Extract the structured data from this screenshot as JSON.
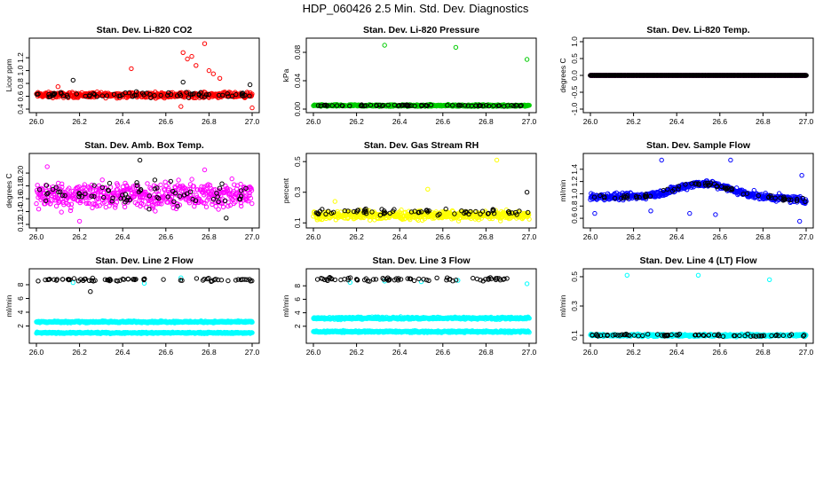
{
  "title": "HDP_060426  2.5 Min. Std. Dev. Diagnostics",
  "colors": {
    "red": "#ff0000",
    "green": "#00cc00",
    "magenta": "#ff00ff",
    "yellow": "#ffff00",
    "blue": "#0000ff",
    "cyan": "#00ffff",
    "black": "#000000"
  },
  "chart_data": [
    {
      "type": "scatter",
      "title": "Stan. Dev. Li-820 CO2",
      "ylabel": "Licor ppm",
      "xlim": [
        26.0,
        27.0
      ],
      "ylim": [
        0.4,
        1.45
      ],
      "xticks": [
        "26.0",
        "26.2",
        "26.4",
        "26.6",
        "26.8",
        "27.0"
      ],
      "yticks": [
        "0.4",
        "0.6",
        "0.8",
        "1.0",
        "1.2"
      ],
      "grid": false,
      "series": [
        {
          "color": "red",
          "kind": "band",
          "center": 0.62,
          "spread": 0.06,
          "outliers": [
            [
              26.44,
              1.03
            ],
            [
              26.68,
              1.28
            ],
            [
              26.7,
              1.18
            ],
            [
              26.72,
              1.22
            ],
            [
              26.74,
              1.08
            ],
            [
              26.78,
              1.42
            ],
            [
              26.8,
              1.0
            ],
            [
              26.82,
              0.95
            ],
            [
              26.85,
              0.88
            ],
            [
              26.67,
              0.44
            ],
            [
              27.0,
              0.42
            ],
            [
              26.1,
              0.75
            ]
          ]
        },
        {
          "color": "black",
          "kind": "sparse",
          "center": 0.62,
          "spread": 0.06,
          "outliers": [
            [
              26.17,
              0.85
            ],
            [
              26.68,
              0.82
            ],
            [
              26.99,
              0.78
            ]
          ]
        }
      ]
    },
    {
      "type": "scatter",
      "title": "Stan. Dev. Li-820 Pressure",
      "ylabel": "kPa",
      "xlim": [
        26.0,
        27.0
      ],
      "ylim": [
        0.0,
        0.095
      ],
      "xticks": [
        "26.0",
        "26.2",
        "26.4",
        "26.6",
        "26.8",
        "27.0"
      ],
      "yticks": [
        "0.00",
        "0.04",
        "0.08"
      ],
      "grid": false,
      "series": [
        {
          "color": "green",
          "kind": "band",
          "center": 0.005,
          "spread": 0.002,
          "outliers": [
            [
              26.33,
              0.09
            ],
            [
              26.66,
              0.087
            ],
            [
              26.99,
              0.07
            ]
          ]
        },
        {
          "color": "black",
          "kind": "sparse",
          "center": 0.005,
          "spread": 0.0015,
          "outliers": []
        }
      ]
    },
    {
      "type": "scatter",
      "title": "Stan. Dev. Li-820 Temp.",
      "ylabel": "degrees C",
      "xlim": [
        26.0,
        27.0
      ],
      "ylim": [
        -1.0,
        1.0
      ],
      "xticks": [
        "26.0",
        "26.2",
        "26.4",
        "26.6",
        "26.8",
        "27.0"
      ],
      "yticks": [
        "-1.0",
        "-0.5",
        "0.0",
        "0.5",
        "1.0"
      ],
      "grid": false,
      "series": [
        {
          "color": "magenta",
          "kind": "line",
          "center": 0.0,
          "spread": 0.0,
          "outliers": [
            [
              26.0,
              0.0
            ]
          ]
        },
        {
          "color": "black",
          "kind": "line",
          "center": 0.0,
          "spread": 0.0,
          "outliers": []
        }
      ]
    },
    {
      "type": "scatter",
      "title": "Stan. Dev. Amb. Box Temp.",
      "ylabel": "degrees C",
      "xlim": [
        26.0,
        27.0
      ],
      "ylim": [
        0.12,
        0.225
      ],
      "xticks": [
        "26.0",
        "26.2",
        "26.4",
        "26.6",
        "26.8",
        "27.0"
      ],
      "yticks": [
        "0.12",
        "0.14",
        "0.16",
        "0.18",
        "0.20"
      ],
      "grid": false,
      "series": [
        {
          "color": "magenta",
          "kind": "band",
          "center": 0.165,
          "spread": 0.03,
          "outliers": [
            [
              26.05,
              0.21
            ],
            [
              26.2,
              0.125
            ],
            [
              26.78,
              0.205
            ]
          ]
        },
        {
          "color": "black",
          "kind": "sparse",
          "center": 0.168,
          "spread": 0.028,
          "outliers": [
            [
              26.48,
              0.22
            ],
            [
              26.88,
              0.13
            ]
          ]
        }
      ]
    },
    {
      "type": "scatter",
      "title": "Stan. Dev. Gas Stream RH",
      "ylabel": "percent",
      "xlim": [
        26.0,
        27.0
      ],
      "ylim": [
        0.09,
        0.53
      ],
      "xticks": [
        "26.0",
        "26.2",
        "26.4",
        "26.6",
        "26.8",
        "27.0"
      ],
      "yticks": [
        "0.1",
        "0.3",
        "0.5"
      ],
      "grid": false,
      "series": [
        {
          "color": "yellow",
          "kind": "band",
          "center": 0.15,
          "spread": 0.04,
          "outliers": [
            [
              26.85,
              0.51
            ],
            [
              26.53,
              0.32
            ],
            [
              26.1,
              0.24
            ]
          ]
        },
        {
          "color": "black",
          "kind": "sparse",
          "center": 0.17,
          "spread": 0.03,
          "outliers": [
            [
              26.99,
              0.3
            ]
          ]
        }
      ]
    },
    {
      "type": "scatter",
      "title": "Stan. Dev. Sample Flow",
      "ylabel": "ml/min",
      "xlim": [
        26.0,
        27.0
      ],
      "ylim": [
        0.5,
        1.6
      ],
      "xticks": [
        "26.0",
        "26.2",
        "26.4",
        "26.6",
        "26.8",
        "27.0"
      ],
      "yticks": [
        "0.6",
        "0.8",
        "1.0",
        "1.2",
        "1.4"
      ],
      "grid": false,
      "series": [
        {
          "color": "blue",
          "kind": "hump",
          "center": 0.95,
          "spread": 0.08,
          "outliers": [
            [
              26.33,
              1.55
            ],
            [
              26.65,
              1.55
            ],
            [
              26.28,
              0.72
            ],
            [
              26.46,
              0.68
            ],
            [
              26.58,
              0.66
            ],
            [
              26.97,
              0.55
            ],
            [
              26.98,
              1.3
            ],
            [
              26.02,
              0.68
            ]
          ]
        },
        {
          "color": "black",
          "kind": "humpsparse",
          "center": 0.95,
          "spread": 0.05,
          "outliers": []
        }
      ]
    },
    {
      "type": "scatter",
      "title": "Stan. Dev. Line 2 Flow",
      "ylabel": "ml/min",
      "xlim": [
        26.0,
        27.0
      ],
      "ylim": [
        0.0,
        9.8
      ],
      "xticks": [
        "26.0",
        "26.2",
        "26.4",
        "26.6",
        "26.8",
        "27.0"
      ],
      "yticks": [
        "2",
        "4",
        "6",
        "8"
      ],
      "grid": false,
      "series": [
        {
          "color": "cyan",
          "kind": "band",
          "center": 2.6,
          "spread": 0.2,
          "outliers": [
            [
              26.17,
              8.3
            ],
            [
              26.5,
              8.2
            ],
            [
              26.67,
              9.0
            ]
          ]
        },
        {
          "color": "cyan",
          "kind": "band",
          "center": 1.0,
          "spread": 0.15,
          "outliers": []
        },
        {
          "color": "black",
          "kind": "sparse",
          "center": 8.7,
          "spread": 0.4,
          "outliers": [
            [
              26.25,
              7.0
            ]
          ]
        }
      ]
    },
    {
      "type": "scatter",
      "title": "Stan. Dev. Line 3 Flow",
      "ylabel": "ml/min",
      "xlim": [
        26.0,
        27.0
      ],
      "ylim": [
        0.0,
        10.0
      ],
      "xticks": [
        "26.0",
        "26.2",
        "26.4",
        "26.6",
        "26.8",
        "27.0"
      ],
      "yticks": [
        "2",
        "4",
        "6",
        "8"
      ],
      "grid": false,
      "series": [
        {
          "color": "cyan",
          "kind": "band",
          "center": 3.2,
          "spread": 0.25,
          "outliers": [
            [
              26.17,
              8.5
            ],
            [
              26.33,
              8.7
            ],
            [
              26.5,
              8.6
            ],
            [
              26.67,
              8.8
            ],
            [
              26.99,
              8.3
            ]
          ]
        },
        {
          "color": "cyan",
          "kind": "band",
          "center": 1.2,
          "spread": 0.2,
          "outliers": []
        },
        {
          "color": "black",
          "kind": "sparse",
          "center": 9.0,
          "spread": 0.4,
          "outliers": []
        }
      ]
    },
    {
      "type": "scatter",
      "title": "Stan. Dev. Line 4 (LT) Flow",
      "ylabel": "ml/min",
      "xlim": [
        26.0,
        27.0
      ],
      "ylim": [
        0.07,
        0.53
      ],
      "xticks": [
        "26.0",
        "26.2",
        "26.4",
        "26.6",
        "26.8",
        "27.0"
      ],
      "yticks": [
        "0.1",
        "0.3",
        "0.5"
      ],
      "grid": false,
      "series": [
        {
          "color": "cyan",
          "kind": "band",
          "center": 0.1,
          "spread": 0.012,
          "outliers": [
            [
              26.17,
              0.51
            ],
            [
              26.5,
              0.51
            ],
            [
              26.83,
              0.48
            ]
          ]
        },
        {
          "color": "black",
          "kind": "sparse",
          "center": 0.1,
          "spread": 0.012,
          "outliers": []
        }
      ]
    }
  ]
}
